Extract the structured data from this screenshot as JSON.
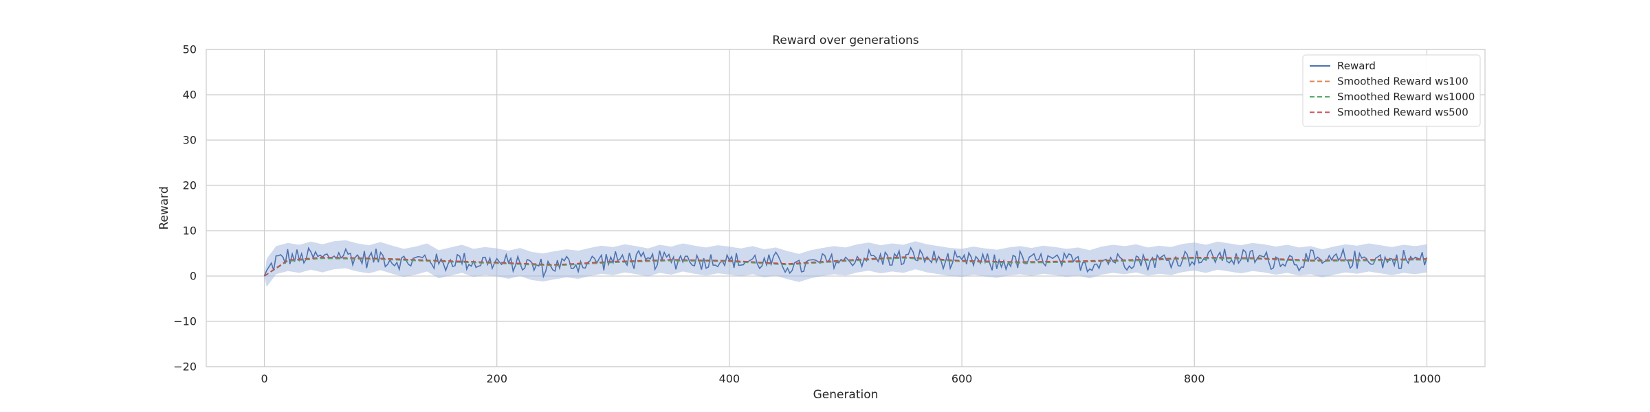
{
  "chart_data": {
    "type": "line",
    "title": "Reward over generations",
    "xlabel": "Generation",
    "ylabel": "Reward",
    "xlim": [
      -50,
      1050
    ],
    "ylim": [
      -20,
      50
    ],
    "xticks": [
      0,
      200,
      400,
      600,
      800,
      1000
    ],
    "yticks": [
      -20,
      -10,
      0,
      10,
      20,
      30,
      40,
      50
    ],
    "grid": true,
    "legend_position": "top-right",
    "series": [
      {
        "name": "Reward",
        "style": "solid",
        "color": "#4c72b0",
        "band_color": "#a7bce0",
        "x": [
          0,
          10,
          20,
          30,
          40,
          50,
          60,
          70,
          80,
          90,
          100,
          110,
          120,
          130,
          140,
          150,
          160,
          170,
          180,
          190,
          200,
          210,
          220,
          230,
          240,
          250,
          260,
          270,
          280,
          290,
          300,
          310,
          320,
          330,
          340,
          350,
          360,
          370,
          380,
          390,
          400,
          410,
          420,
          430,
          440,
          450,
          460,
          470,
          480,
          490,
          500,
          510,
          520,
          530,
          540,
          550,
          560,
          570,
          580,
          590,
          600,
          610,
          620,
          630,
          640,
          650,
          660,
          670,
          680,
          690,
          700,
          710,
          720,
          730,
          740,
          750,
          760,
          770,
          780,
          790,
          800,
          810,
          820,
          830,
          840,
          850,
          860,
          870,
          880,
          890,
          900,
          910,
          920,
          930,
          940,
          950,
          960,
          970,
          980,
          990,
          1000
        ],
        "y": [
          0,
          3.5,
          4.2,
          3.8,
          4.5,
          3.9,
          4.6,
          4.8,
          4.1,
          3.7,
          4.4,
          3.6,
          2.9,
          3.4,
          4.1,
          2.6,
          3.2,
          3.8,
          2.9,
          3.3,
          3.0,
          2.5,
          3.1,
          2.2,
          1.9,
          2.4,
          2.8,
          2.5,
          3.1,
          3.6,
          3.3,
          3.9,
          3.5,
          3.0,
          3.8,
          3.4,
          4.1,
          3.6,
          3.2,
          3.7,
          3.4,
          3.0,
          3.5,
          2.8,
          3.2,
          2.4,
          1.8,
          2.6,
          3.1,
          3.5,
          3.2,
          3.9,
          4.3,
          3.7,
          4.1,
          3.8,
          4.6,
          3.9,
          3.5,
          3.1,
          2.9,
          3.4,
          3.0,
          2.7,
          3.2,
          3.5,
          3.1,
          3.6,
          3.3,
          2.9,
          3.2,
          2.6,
          3.4,
          3.8,
          3.5,
          3.9,
          3.2,
          3.6,
          3.3,
          4.0,
          4.3,
          3.8,
          4.5,
          4.1,
          3.7,
          4.2,
          3.9,
          3.4,
          3.8,
          3.2,
          3.5,
          2.8,
          3.4,
          3.9,
          3.6,
          4.1,
          3.7,
          3.3,
          3.8,
          3.5,
          3.9
        ],
        "spread": 2.5
      },
      {
        "name": "Smoothed Reward ws100",
        "style": "dashed",
        "color": "#dd8452",
        "x": [
          0,
          20,
          50,
          100,
          150,
          200,
          250,
          300,
          350,
          400,
          450,
          500,
          550,
          600,
          650,
          700,
          750,
          800,
          850,
          900,
          950,
          1000
        ],
        "y": [
          0,
          3.4,
          4.0,
          3.8,
          3.3,
          2.9,
          2.4,
          3.1,
          3.5,
          3.3,
          2.6,
          3.4,
          4.1,
          3.3,
          3.0,
          3.2,
          3.5,
          4.0,
          3.9,
          3.4,
          3.5,
          3.7
        ]
      },
      {
        "name": "Smoothed Reward ws1000",
        "style": "dashed",
        "color": "#55a868",
        "x": [
          0,
          20,
          50,
          100,
          150,
          200,
          250,
          300,
          350,
          400,
          450,
          500,
          550,
          600,
          650,
          700,
          750,
          800,
          850,
          900,
          950,
          1000
        ],
        "y": [
          0,
          3.3,
          3.9,
          3.7,
          3.2,
          2.8,
          2.3,
          3.0,
          3.4,
          3.2,
          2.5,
          3.3,
          4.0,
          3.2,
          2.9,
          3.1,
          3.4,
          3.9,
          3.8,
          3.3,
          3.4,
          3.6
        ]
      },
      {
        "name": "Smoothed Reward ws500",
        "style": "dashed",
        "color": "#c44e52",
        "x": [
          0,
          20,
          50,
          100,
          150,
          200,
          250,
          300,
          350,
          400,
          450,
          500,
          550,
          600,
          650,
          700,
          750,
          800,
          850,
          900,
          950,
          1000
        ],
        "y": [
          0,
          3.5,
          4.1,
          3.9,
          3.4,
          3.0,
          2.5,
          3.2,
          3.6,
          3.4,
          2.7,
          3.5,
          4.2,
          3.4,
          3.1,
          3.3,
          3.6,
          4.1,
          4.0,
          3.5,
          3.6,
          3.8
        ]
      }
    ]
  }
}
